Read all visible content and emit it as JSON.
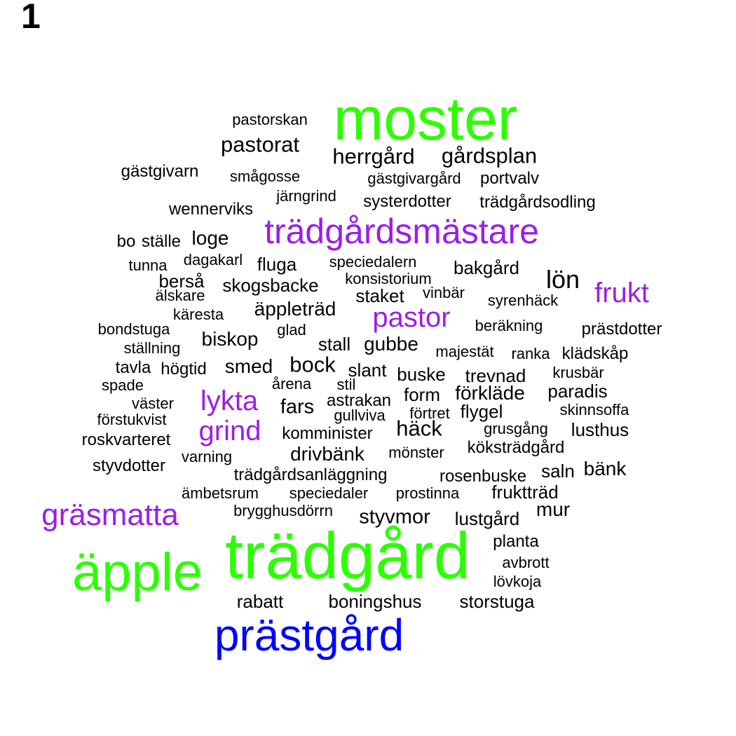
{
  "panel_label": "1",
  "colors": {
    "tier1": "#2bff00",
    "tier2": "#0000ff",
    "tier3": "#9b1fe6",
    "tier4": "#000000"
  },
  "words": [
    {
      "text": "moster",
      "color": "tier1"
    },
    {
      "text": "trädgård",
      "color": "tier1"
    },
    {
      "text": "äpple",
      "color": "tier1"
    },
    {
      "text": "prästgård",
      "color": "tier2"
    },
    {
      "text": "trädgårdsmästare",
      "color": "tier3"
    },
    {
      "text": "gräsmatta",
      "color": "tier3"
    },
    {
      "text": "pastor",
      "color": "tier3"
    },
    {
      "text": "frukt",
      "color": "tier3"
    },
    {
      "text": "lykta",
      "color": "tier3"
    },
    {
      "text": "grind",
      "color": "tier3"
    },
    {
      "text": "pastorskan",
      "color": "tier4"
    },
    {
      "text": "pastorat",
      "color": "tier4"
    },
    {
      "text": "herrgård",
      "color": "tier4"
    },
    {
      "text": "gårdsplan",
      "color": "tier4"
    },
    {
      "text": "gästgivarn",
      "color": "tier4"
    },
    {
      "text": "smågosse",
      "color": "tier4"
    },
    {
      "text": "gästgivargård",
      "color": "tier4"
    },
    {
      "text": "portvalv",
      "color": "tier4"
    },
    {
      "text": "järngrind",
      "color": "tier4"
    },
    {
      "text": "systerdotter",
      "color": "tier4"
    },
    {
      "text": "trädgårdsodling",
      "color": "tier4"
    },
    {
      "text": "wennerviks",
      "color": "tier4"
    },
    {
      "text": "ställe",
      "color": "tier4"
    },
    {
      "text": "bo",
      "color": "tier4"
    },
    {
      "text": "loge",
      "color": "tier4"
    },
    {
      "text": "tunna",
      "color": "tier4"
    },
    {
      "text": "dagakarl",
      "color": "tier4"
    },
    {
      "text": "fluga",
      "color": "tier4"
    },
    {
      "text": "speciedalern",
      "color": "tier4"
    },
    {
      "text": "bakgård",
      "color": "tier4"
    },
    {
      "text": "berså",
      "color": "tier4"
    },
    {
      "text": "konsistorium",
      "color": "tier4"
    },
    {
      "text": "lön",
      "color": "tier4"
    },
    {
      "text": "älskare",
      "color": "tier4"
    },
    {
      "text": "skogsbacke",
      "color": "tier4"
    },
    {
      "text": "staket",
      "color": "tier4"
    },
    {
      "text": "vinbär",
      "color": "tier4"
    },
    {
      "text": "syrenhäck",
      "color": "tier4"
    },
    {
      "text": "käresta",
      "color": "tier4"
    },
    {
      "text": "äppleträd",
      "color": "tier4"
    },
    {
      "text": "bondstuga",
      "color": "tier4"
    },
    {
      "text": "glad",
      "color": "tier4"
    },
    {
      "text": "beräkning",
      "color": "tier4"
    },
    {
      "text": "prästdotter",
      "color": "tier4"
    },
    {
      "text": "biskop",
      "color": "tier4"
    },
    {
      "text": "ställning",
      "color": "tier4"
    },
    {
      "text": "stall",
      "color": "tier4"
    },
    {
      "text": "gubbe",
      "color": "tier4"
    },
    {
      "text": "majestät",
      "color": "tier4"
    },
    {
      "text": "ranka",
      "color": "tier4"
    },
    {
      "text": "klädskåp",
      "color": "tier4"
    },
    {
      "text": "tavla",
      "color": "tier4"
    },
    {
      "text": "högtid",
      "color": "tier4"
    },
    {
      "text": "smed",
      "color": "tier4"
    },
    {
      "text": "bock",
      "color": "tier4"
    },
    {
      "text": "slant",
      "color": "tier4"
    },
    {
      "text": "buske",
      "color": "tier4"
    },
    {
      "text": "trevnad",
      "color": "tier4"
    },
    {
      "text": "krusbär",
      "color": "tier4"
    },
    {
      "text": "spade",
      "color": "tier4"
    },
    {
      "text": "årena",
      "color": "tier4"
    },
    {
      "text": "stil",
      "color": "tier4"
    },
    {
      "text": "paradis",
      "color": "tier4"
    },
    {
      "text": "väster",
      "color": "tier4"
    },
    {
      "text": "fars",
      "color": "tier4"
    },
    {
      "text": "astrakan",
      "color": "tier4"
    },
    {
      "text": "form",
      "color": "tier4"
    },
    {
      "text": "förkläde",
      "color": "tier4"
    },
    {
      "text": "förstukvist",
      "color": "tier4"
    },
    {
      "text": "gullviva",
      "color": "tier4"
    },
    {
      "text": "förtret",
      "color": "tier4"
    },
    {
      "text": "flygel",
      "color": "tier4"
    },
    {
      "text": "skinnsoffa",
      "color": "tier4"
    },
    {
      "text": "roskvarteret",
      "color": "tier4"
    },
    {
      "text": "komminister",
      "color": "tier4"
    },
    {
      "text": "häck",
      "color": "tier4"
    },
    {
      "text": "grusgång",
      "color": "tier4"
    },
    {
      "text": "lusthus",
      "color": "tier4"
    },
    {
      "text": "drivbänk",
      "color": "tier4"
    },
    {
      "text": "mönster",
      "color": "tier4"
    },
    {
      "text": "köksträdgård",
      "color": "tier4"
    },
    {
      "text": "styvdotter",
      "color": "tier4"
    },
    {
      "text": "varning",
      "color": "tier4"
    },
    {
      "text": "trädgårdsanläggning",
      "color": "tier4"
    },
    {
      "text": "rosenbuske",
      "color": "tier4"
    },
    {
      "text": "saln",
      "color": "tier4"
    },
    {
      "text": "bänk",
      "color": "tier4"
    },
    {
      "text": "ämbetsrum",
      "color": "tier4"
    },
    {
      "text": "speciedaler",
      "color": "tier4"
    },
    {
      "text": "prostinna",
      "color": "tier4"
    },
    {
      "text": "fruktträd",
      "color": "tier4"
    },
    {
      "text": "brygghusdörrn",
      "color": "tier4"
    },
    {
      "text": "styvmor",
      "color": "tier4"
    },
    {
      "text": "lustgård",
      "color": "tier4"
    },
    {
      "text": "mur",
      "color": "tier4"
    },
    {
      "text": "planta",
      "color": "tier4"
    },
    {
      "text": "avbrott",
      "color": "tier4"
    },
    {
      "text": "lövkoja",
      "color": "tier4"
    },
    {
      "text": "rabatt",
      "color": "tier4"
    },
    {
      "text": "boningshus",
      "color": "tier4"
    },
    {
      "text": "storstuga",
      "color": "tier4"
    }
  ]
}
